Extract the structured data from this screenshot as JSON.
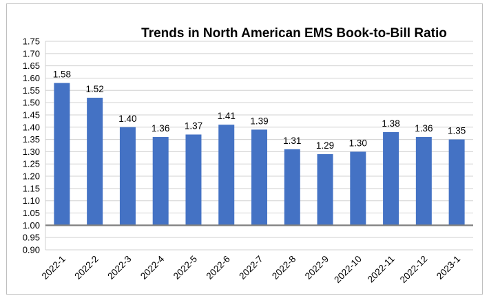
{
  "chart_data": {
    "type": "bar",
    "title": "Trends in North American EMS Book-to-Bill Ratio",
    "xlabel": "",
    "ylabel": "",
    "categories": [
      "2022-1",
      "2022-2",
      "2022-3",
      "2022-4",
      "2022-5",
      "2022-6",
      "2022-7",
      "2022-8",
      "2022-9",
      "2022-10",
      "2022-11",
      "2022-12",
      "2023-1"
    ],
    "values": [
      1.58,
      1.52,
      1.4,
      1.36,
      1.37,
      1.41,
      1.39,
      1.31,
      1.29,
      1.3,
      1.38,
      1.36,
      1.35
    ],
    "data_labels": [
      "1.58",
      "1.52",
      "1.40",
      "1.36",
      "1.37",
      "1.41",
      "1.39",
      "1.31",
      "1.29",
      "1.30",
      "1.38",
      "1.36",
      "1.35"
    ],
    "ylim": [
      0.9,
      1.75
    ],
    "yticks": [
      0.9,
      0.95,
      1.0,
      1.05,
      1.1,
      1.15,
      1.2,
      1.25,
      1.3,
      1.35,
      1.4,
      1.45,
      1.5,
      1.55,
      1.6,
      1.65,
      1.7,
      1.75
    ],
    "ytick_labels": [
      "0.90",
      "0.95",
      "1.00",
      "1.05",
      "1.10",
      "1.15",
      "1.20",
      "1.25",
      "1.30",
      "1.35",
      "1.40",
      "1.45",
      "1.50",
      "1.55",
      "1.60",
      "1.65",
      "1.70",
      "1.75"
    ],
    "baseline": 1.0,
    "grid": true,
    "legend": "none",
    "bar_color": "#4472c4",
    "grid_color": "#d0d0d0",
    "baseline_color": "#7f7f7f"
  }
}
